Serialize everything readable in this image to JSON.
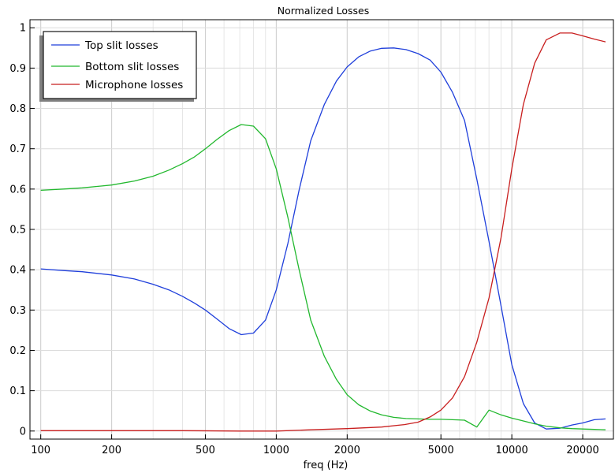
{
  "chart_data": {
    "type": "line",
    "title": "Normalized Losses",
    "xlabel": "freq (Hz)",
    "ylabel": "",
    "xscale": "log",
    "xlim": [
      90,
      27000
    ],
    "ylim": [
      -0.02,
      1.02
    ],
    "grid": true,
    "legend_position": "top-left",
    "x_ticks": [
      100,
      200,
      500,
      1000,
      2000,
      5000,
      10000,
      20000
    ],
    "x_tick_labels": [
      "100",
      "200",
      "500",
      "1000",
      "2000",
      "5000",
      "10000",
      "20000"
    ],
    "y_ticks": [
      0,
      0.1,
      0.2,
      0.3,
      0.4,
      0.5,
      0.6,
      0.7,
      0.8,
      0.9,
      1
    ],
    "y_tick_labels": [
      "0",
      "0.1",
      "0.2",
      "0.3",
      "0.4",
      "0.5",
      "0.6",
      "0.7",
      "0.8",
      "0.9",
      "1"
    ],
    "series": [
      {
        "name": "Top slit losses",
        "color": "#1f3fdb",
        "x": [
          100,
          125,
          150,
          200,
          250,
          300,
          350,
          400,
          450,
          500,
          560,
          630,
          710,
          800,
          900,
          1000,
          1120,
          1250,
          1400,
          1600,
          1800,
          2000,
          2240,
          2500,
          2800,
          3150,
          3550,
          4000,
          4500,
          5000,
          5600,
          6300,
          7100,
          8000,
          9000,
          10000,
          11200,
          12500,
          14000,
          16000,
          18000,
          20000,
          22400,
          25000
        ],
        "y": [
          0.402,
          0.398,
          0.395,
          0.387,
          0.377,
          0.364,
          0.35,
          0.334,
          0.317,
          0.3,
          0.278,
          0.254,
          0.239,
          0.243,
          0.275,
          0.35,
          0.465,
          0.598,
          0.72,
          0.81,
          0.868,
          0.903,
          0.928,
          0.942,
          0.949,
          0.95,
          0.946,
          0.936,
          0.92,
          0.89,
          0.84,
          0.77,
          0.625,
          0.47,
          0.31,
          0.165,
          0.068,
          0.02,
          0.005,
          0.007,
          0.015,
          0.02,
          0.028,
          0.03
        ]
      },
      {
        "name": "Bottom slit losses",
        "color": "#22b82e",
        "x": [
          100,
          125,
          150,
          200,
          250,
          300,
          350,
          400,
          450,
          500,
          560,
          630,
          710,
          800,
          900,
          1000,
          1120,
          1250,
          1400,
          1600,
          1800,
          2000,
          2240,
          2500,
          2800,
          3150,
          3550,
          4000,
          4500,
          5000,
          5600,
          6300,
          7100,
          8000,
          9000,
          10000,
          11200,
          12500,
          14000,
          16000,
          18000,
          20000,
          22400,
          25000
        ],
        "y": [
          0.597,
          0.6,
          0.603,
          0.61,
          0.62,
          0.632,
          0.647,
          0.663,
          0.68,
          0.7,
          0.723,
          0.745,
          0.76,
          0.756,
          0.725,
          0.65,
          0.53,
          0.4,
          0.275,
          0.185,
          0.128,
          0.09,
          0.065,
          0.05,
          0.04,
          0.034,
          0.031,
          0.03,
          0.029,
          0.029,
          0.028,
          0.027,
          0.01,
          0.052,
          0.04,
          0.032,
          0.025,
          0.018,
          0.012,
          0.008,
          0.006,
          0.005,
          0.004,
          0.003
        ]
      },
      {
        "name": "Microphone losses",
        "color": "#c81e1e",
        "x": [
          100,
          200,
          400,
          700,
          1000,
          1400,
          2000,
          2800,
          3500,
          4000,
          4500,
          5000,
          5600,
          6300,
          7100,
          8000,
          9000,
          10000,
          11200,
          12500,
          14000,
          16000,
          18000,
          20000,
          22400,
          25000
        ],
        "y": [
          0.001,
          0.001,
          0.001,
          0.0,
          0.0,
          0.003,
          0.006,
          0.01,
          0.016,
          0.022,
          0.035,
          0.052,
          0.082,
          0.135,
          0.22,
          0.33,
          0.48,
          0.65,
          0.81,
          0.912,
          0.97,
          0.987,
          0.987,
          0.98,
          0.972,
          0.965
        ]
      }
    ]
  }
}
